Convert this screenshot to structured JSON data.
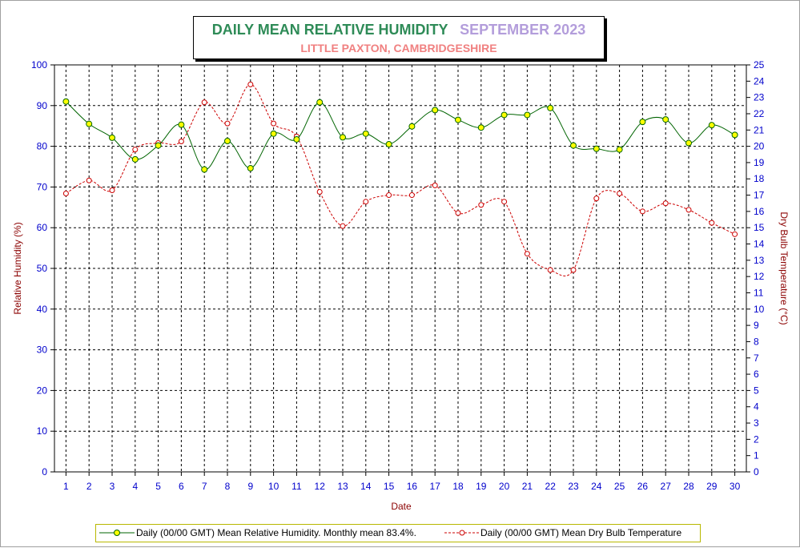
{
  "chart_data": {
    "type": "line",
    "title": "DAILY MEAN RELATIVE HUMIDITY",
    "title_period": "SEPTEMBER 2023",
    "subtitle": "LITTLE PAXTON, CAMBRIDGESHIRE",
    "xlabel": "Date",
    "ylabel": "Relative Humidity (%)",
    "y2label": "Dry Bulb Temperature (°C)",
    "ylim": [
      0,
      100
    ],
    "y2lim": [
      0,
      25
    ],
    "grid": true,
    "legend_position": "bottom",
    "x": [
      1,
      2,
      3,
      4,
      5,
      6,
      7,
      8,
      9,
      10,
      11,
      12,
      13,
      14,
      15,
      16,
      17,
      18,
      19,
      20,
      21,
      22,
      23,
      24,
      25,
      26,
      27,
      28,
      29,
      30
    ],
    "series": [
      {
        "name": "Daily (00/00 GMT) Mean Relative Humidity. Monthly mean 83.4%.",
        "axis": "left",
        "color": "#006400",
        "marker_color": "#ffff00",
        "values": [
          91,
          85.5,
          82.1,
          76.8,
          80.2,
          85.3,
          74.3,
          81.3,
          74.6,
          83.1,
          81.7,
          90.8,
          82.2,
          83.1,
          80.5,
          84.9,
          88.9,
          86.5,
          84.6,
          87.7,
          87.7,
          89.4,
          80.2,
          79.4,
          79.2,
          86,
          86.6,
          80.8,
          85.2,
          82.8
        ]
      },
      {
        "name": "Daily (00/00 GMT) Mean Dry Bulb Temperature",
        "axis": "right",
        "color": "#cc0000",
        "marker_color": "#ffffff",
        "values": [
          17.1,
          17.9,
          17.3,
          19.8,
          20.2,
          20.3,
          22.7,
          21.4,
          23.8,
          21.4,
          20.6,
          17.2,
          15.1,
          16.6,
          17,
          17,
          17.6,
          15.9,
          16.4,
          16.6,
          13.4,
          12.4,
          12.4,
          16.8,
          17.1,
          16,
          16.5,
          16.1,
          15.3,
          14.6
        ]
      }
    ]
  },
  "colors": {
    "title_main": "#2e8b57",
    "title_period": "#b39ddb",
    "subtitle": "#f08080",
    "axis_label": "#8b0000",
    "tick_label": "#0000cc",
    "rh_line": "#006400",
    "temp_line": "#cc0000"
  }
}
